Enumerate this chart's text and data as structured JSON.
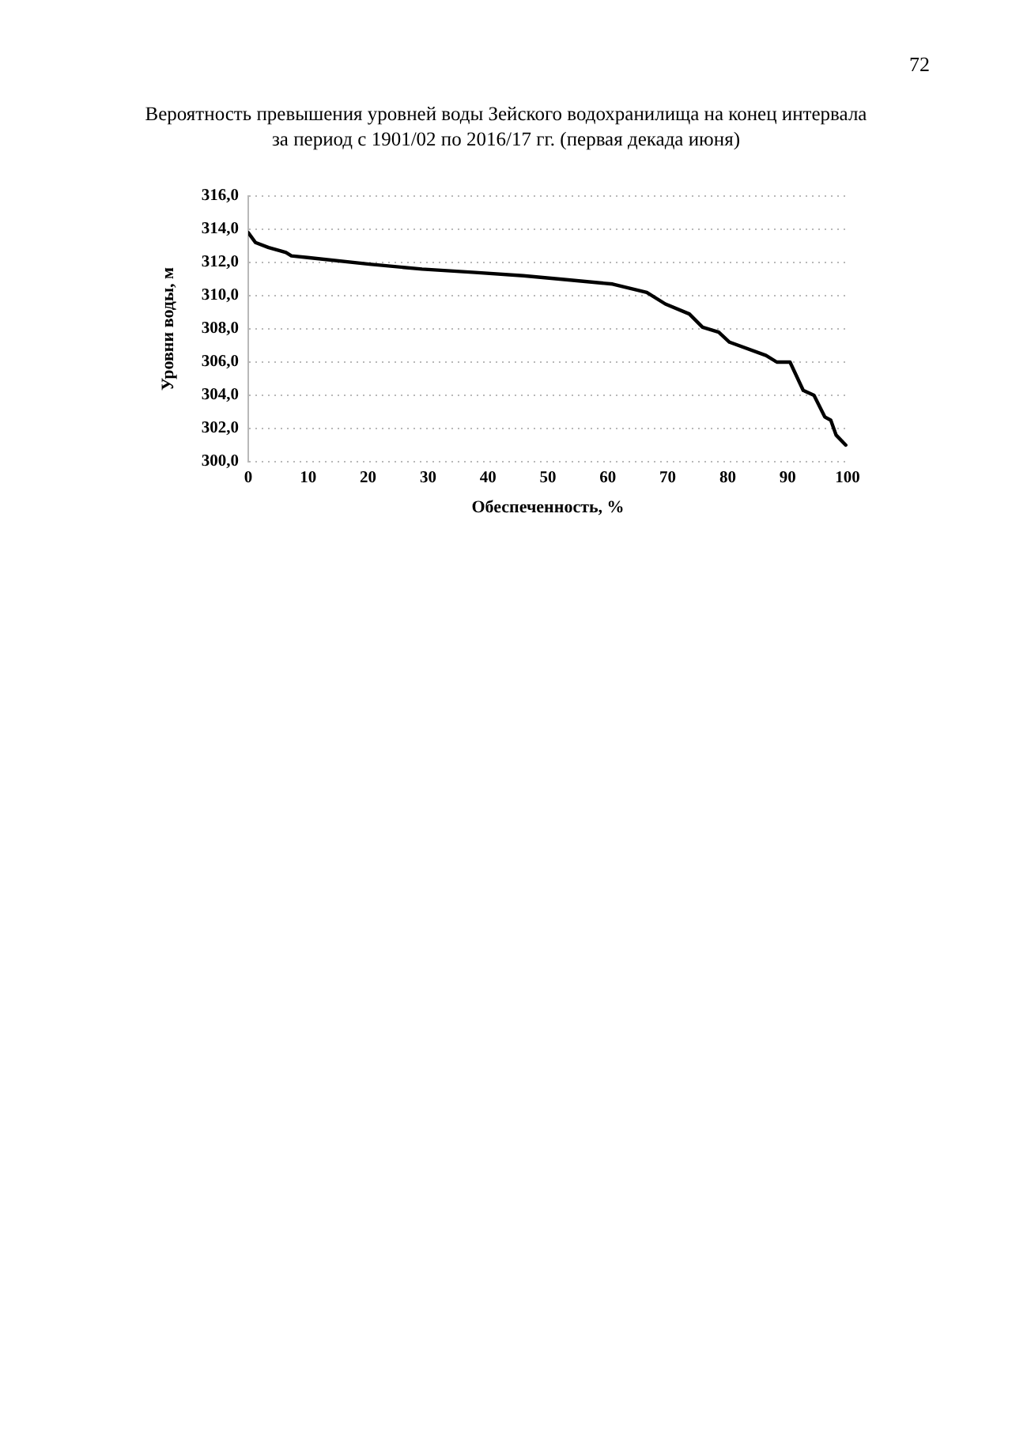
{
  "chart_data": {
    "type": "line",
    "title": "Вероятность превышения уровней воды Зейского водохранилища на конец интервала за период с 1901/02 по 2016/17 гг. (первая декада июня)",
    "xlabel": "Обеспеченность, %",
    "ylabel": "Уровни воды, м",
    "annotations": [
      "72"
    ],
    "x": [
      0,
      1.2,
      3.4,
      5.4,
      6.3,
      7.2,
      9.9,
      20.2,
      29,
      37.9,
      45.9,
      52,
      60.8,
      66.5,
      69.6,
      73.6,
      75.8,
      78.5,
      80.3,
      86.4,
      88.2,
      90.4,
      92.6,
      94.4,
      96.2,
      97.2,
      98.1,
      99.7
    ],
    "series": [
      {
        "color": "#000000",
        "values": [
          313.8,
          313.2,
          312.9,
          312.7,
          312.6,
          312.4,
          312.3,
          311.9,
          311.6,
          311.4,
          311.2,
          311.0,
          310.7,
          310.2,
          309.5,
          308.9,
          308.1,
          307.8,
          307.2,
          306.4,
          306.0,
          306.0,
          304.3,
          304.0,
          302.7,
          302.5,
          301.6,
          301.0
        ]
      }
    ],
    "xlim": [
      0,
      100
    ],
    "xticks": [
      0,
      10,
      20,
      30,
      40,
      50,
      60,
      70,
      80,
      90,
      100
    ],
    "ylim": [
      300,
      316
    ],
    "yticks": [
      {
        "value": 300,
        "label": "300,0"
      },
      {
        "value": 302,
        "label": "302,0"
      },
      {
        "value": 304,
        "label": "304,0"
      },
      {
        "value": 306,
        "label": "306,0"
      },
      {
        "value": 308,
        "label": "308,0"
      },
      {
        "value": 310,
        "label": "310,0"
      },
      {
        "value": 312,
        "label": "312,0"
      },
      {
        "value": 314,
        "label": "314,0"
      },
      {
        "value": 316,
        "label": "316,0"
      }
    ],
    "grid": "y",
    "marker": "none",
    "line_style": "solid"
  }
}
